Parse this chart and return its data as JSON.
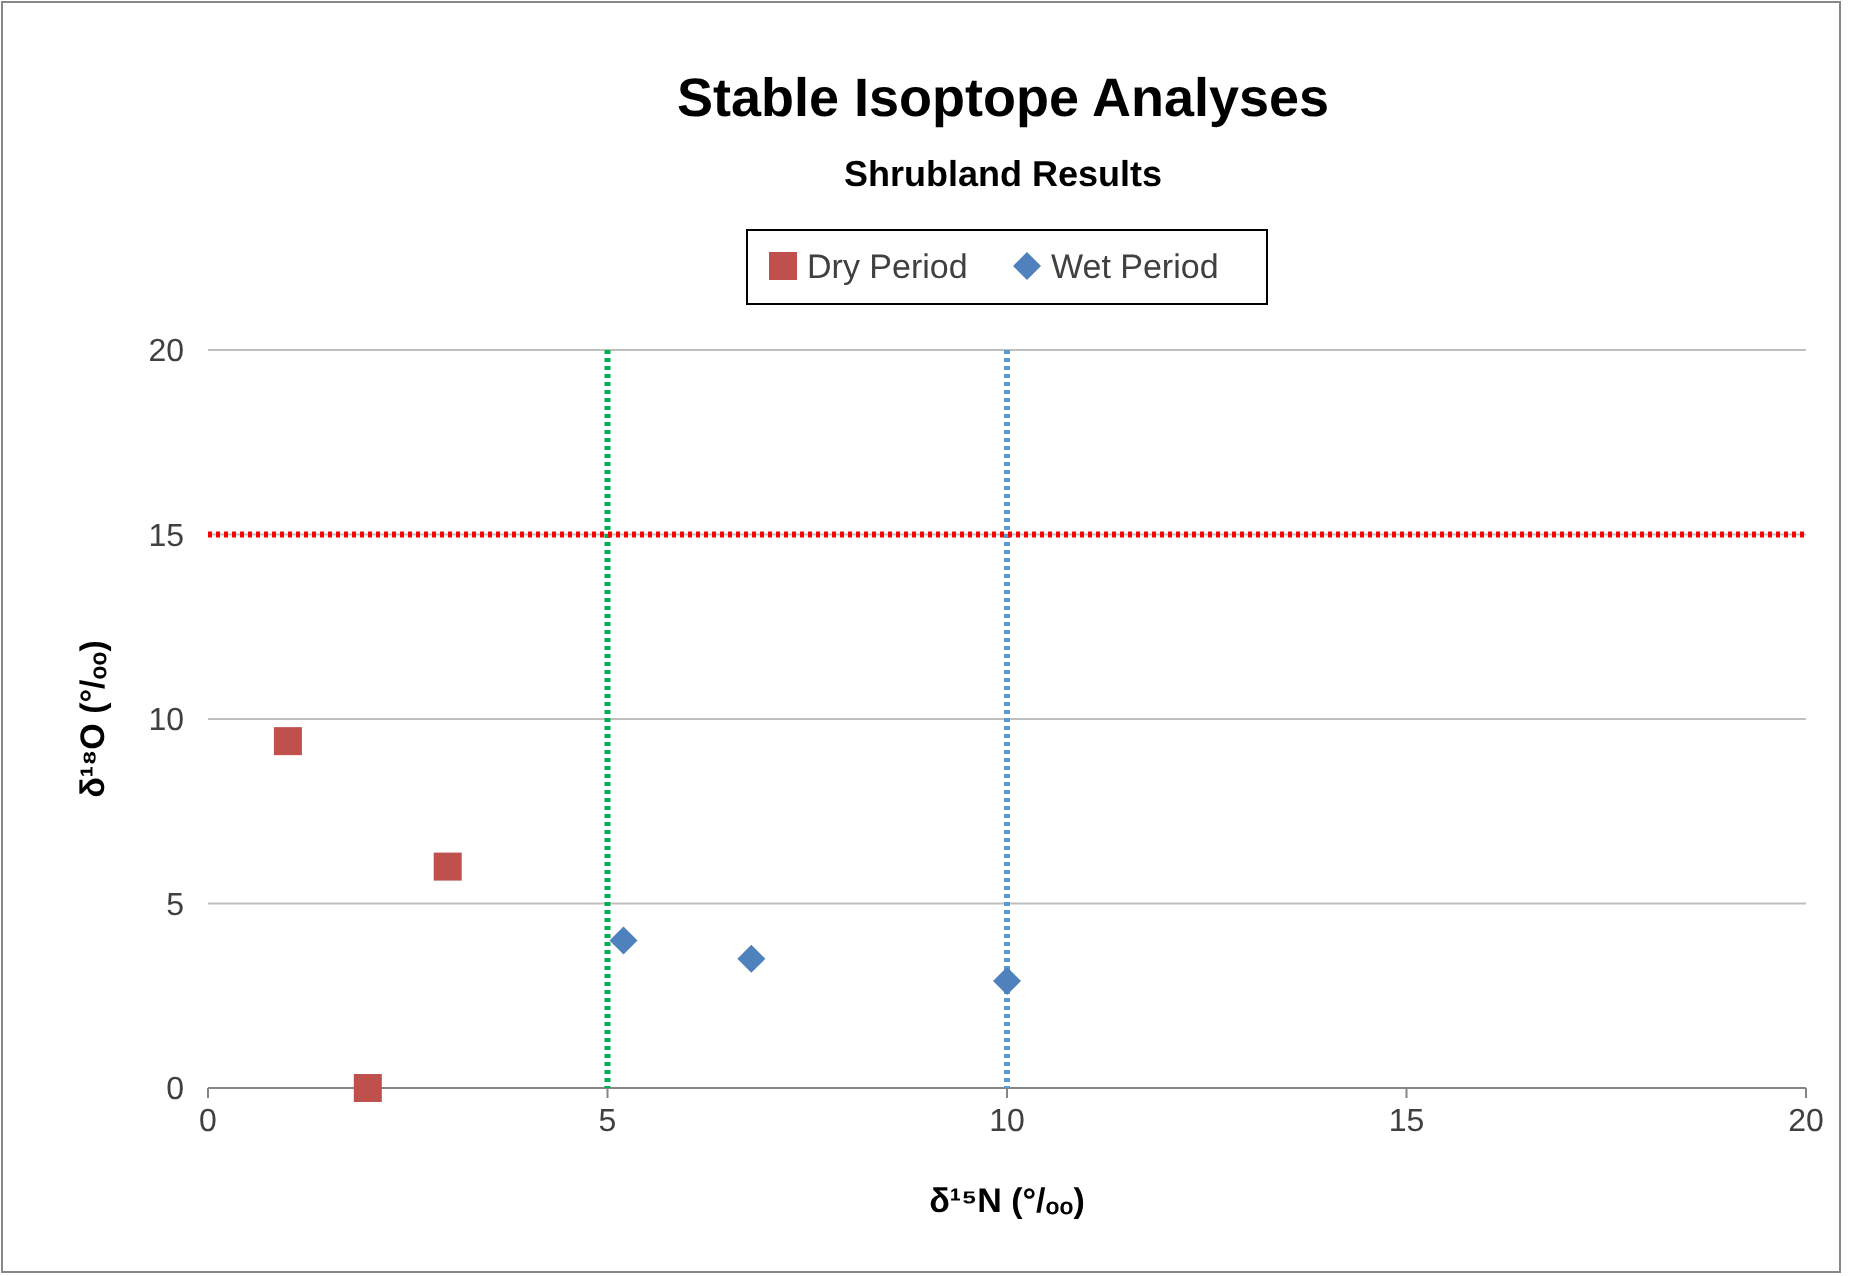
{
  "chart_data": {
    "type": "scatter",
    "title": "Stable Isoptope Analyses",
    "subtitle": "Shrubland Results",
    "xlabel": "δ¹⁵N (°/ₒₒ)",
    "ylabel": "δ¹⁸O (°/ₒₒ)",
    "series": [
      {
        "name": "Dry Period",
        "color": "#c0504d",
        "marker": "square",
        "x": [
          1,
          3,
          2
        ],
        "values": [
          9.4,
          6.0,
          0
        ]
      },
      {
        "name": "Wet Period",
        "color": "#4f81bd",
        "marker": "diamond",
        "x": [
          5.2,
          6.8,
          10
        ],
        "values": [
          4.0,
          3.5,
          2.9
        ]
      }
    ],
    "xlim": [
      0,
      20
    ],
    "xticks": [
      0,
      5,
      10,
      15,
      20
    ],
    "ylim": [
      0,
      20
    ],
    "yticks": [
      0,
      5,
      10,
      15,
      20
    ],
    "grid": "y",
    "legend": "top",
    "ref_lines": [
      {
        "axis": "x",
        "value": 5,
        "color": "#00b050",
        "line_style": "dotted"
      },
      {
        "axis": "x",
        "value": 10,
        "color": "#5b9bd5",
        "line_style": "dotted"
      },
      {
        "axis": "y",
        "value": 15,
        "color": "#ff0000",
        "line_style": "dotted"
      }
    ]
  }
}
